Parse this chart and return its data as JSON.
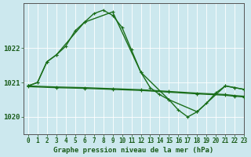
{
  "title": "Graphe pression niveau de la mer (hPa)",
  "background_color": "#cce8ee",
  "line_color": "#1a6e1a",
  "xlim": [
    -0.5,
    23
  ],
  "ylim": [
    1019.5,
    1023.3
  ],
  "yticks": [
    1020,
    1021,
    1022
  ],
  "xticks": [
    0,
    1,
    2,
    3,
    4,
    5,
    6,
    7,
    8,
    9,
    10,
    11,
    12,
    13,
    14,
    15,
    16,
    17,
    18,
    19,
    20,
    21,
    22,
    23
  ],
  "ytick_fontsize": 6.5,
  "xtick_fontsize": 5.5,
  "title_fontsize": 6.5,
  "linewidth": 1.0,
  "markersize": 3.5,
  "series1_x": [
    0,
    1,
    2,
    3,
    4,
    5,
    6,
    7,
    8,
    9,
    10,
    11,
    12,
    13,
    14,
    15,
    16,
    17,
    18,
    19,
    20,
    21,
    22,
    23
  ],
  "series1_y": [
    1020.9,
    1021.0,
    1021.6,
    1021.8,
    1022.05,
    1022.5,
    1022.75,
    1023.0,
    1023.1,
    1022.95,
    1022.6,
    1021.95,
    1021.3,
    1020.85,
    1020.65,
    1020.5,
    1020.2,
    1020.0,
    1020.15,
    1020.4,
    1020.7,
    1020.9,
    1020.85,
    1020.8
  ],
  "series2_x": [
    0,
    1,
    2,
    3,
    6,
    9,
    12,
    15,
    18,
    21,
    22,
    23
  ],
  "series2_y": [
    1020.9,
    1021.0,
    1021.6,
    1021.8,
    1022.75,
    1023.05,
    1021.3,
    1020.5,
    1020.15,
    1020.9,
    1020.85,
    1020.8
  ],
  "series3_x": [
    0,
    3,
    6,
    9,
    12,
    15,
    18,
    21,
    22,
    23
  ],
  "series3_y": [
    1020.88,
    1020.85,
    1020.83,
    1020.8,
    1020.77,
    1020.72,
    1020.67,
    1020.63,
    1020.6,
    1020.58
  ],
  "series4_x": [
    0,
    3,
    6,
    9,
    12,
    15,
    18,
    21,
    22,
    23
  ],
  "series4_y": [
    1020.9,
    1020.87,
    1020.85,
    1020.82,
    1020.79,
    1020.74,
    1020.69,
    1020.65,
    1020.62,
    1020.6
  ]
}
